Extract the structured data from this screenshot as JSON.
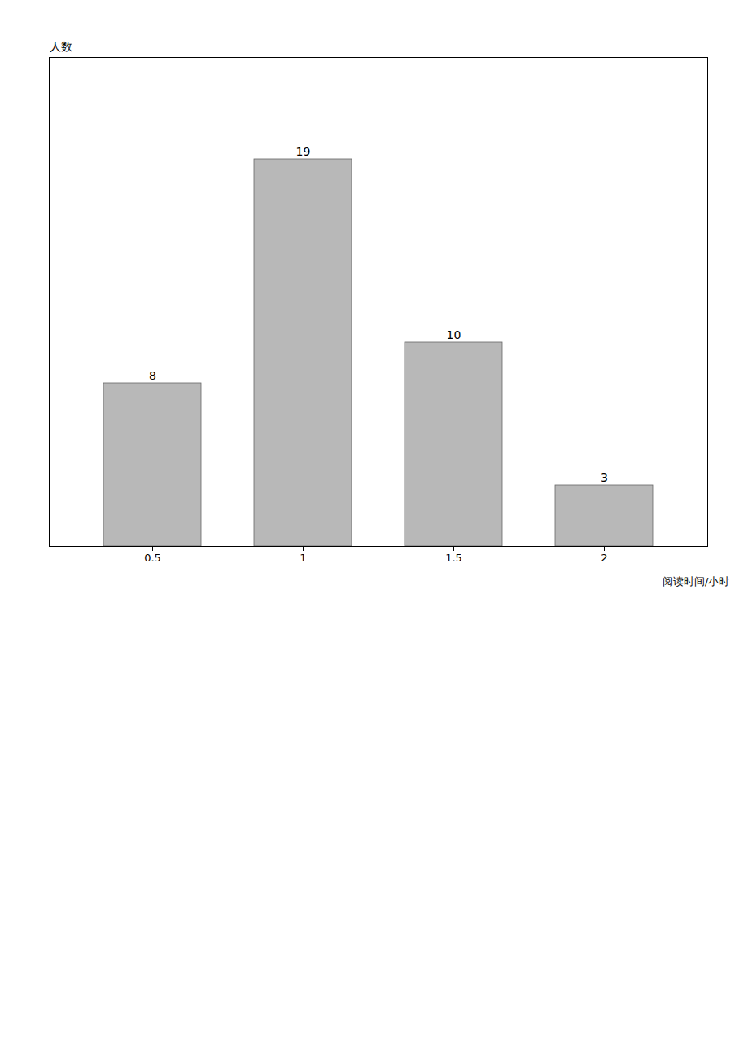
{
  "chart_data": {
    "type": "bar",
    "categories": [
      "0.5",
      "1",
      "1.5",
      "2"
    ],
    "values": [
      8,
      19,
      10,
      3
    ],
    "color": "#b8b8b8",
    "ylim": [
      0,
      24
    ],
    "xlabel": "阅读时间/小时",
    "ylabel": "人数",
    "data_labels": true,
    "tick_labels": "x"
  }
}
